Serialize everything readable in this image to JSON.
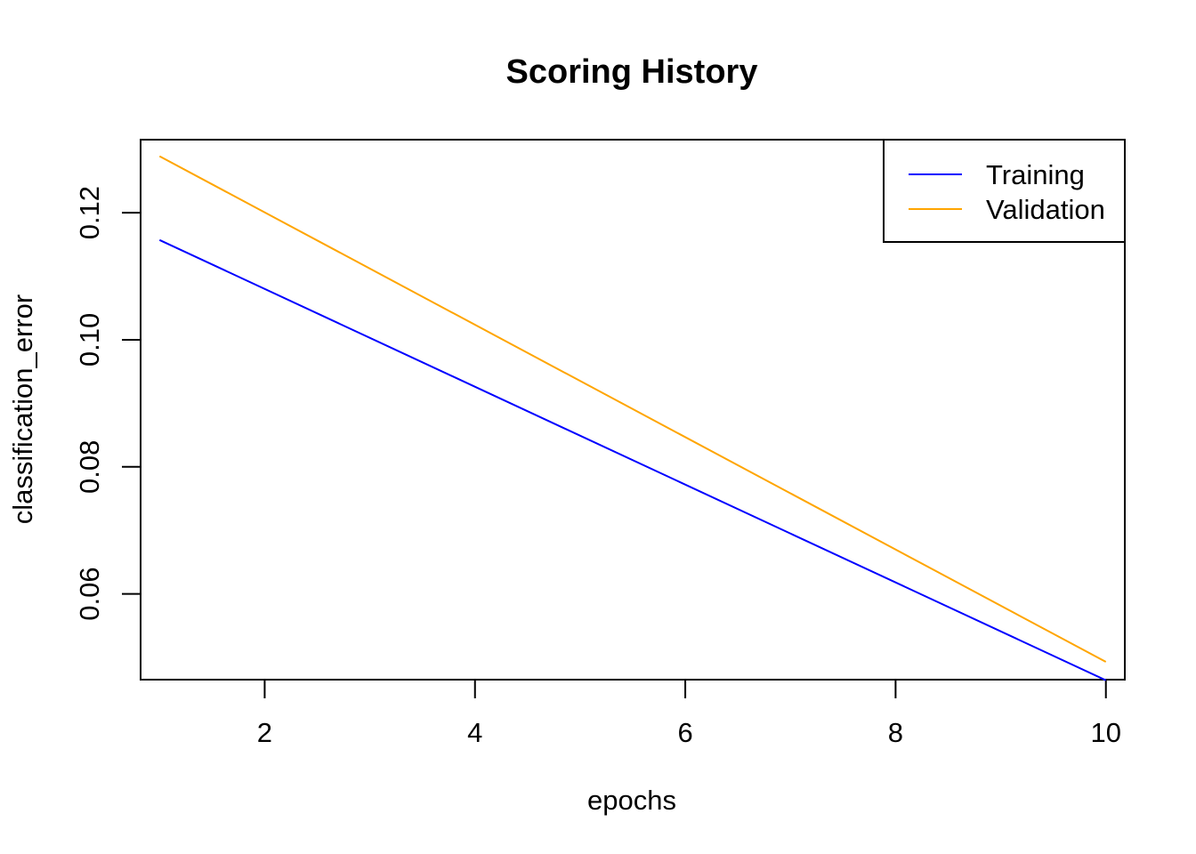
{
  "chart_data": {
    "type": "line",
    "title": "Scoring History",
    "xlabel": "epochs",
    "ylabel": "classification_error",
    "xlim": [
      0.82,
      10.18
    ],
    "ylim": [
      0.0465,
      0.1315
    ],
    "x_ticks": [
      2,
      4,
      6,
      8,
      10
    ],
    "y_ticks": [
      0.06,
      0.08,
      0.1,
      0.12
    ],
    "x_tick_labels": [
      "2",
      "4",
      "6",
      "8",
      "10"
    ],
    "y_tick_labels": [
      "0.06",
      "0.08",
      "0.10",
      "0.12"
    ],
    "grid": false,
    "legend_position": "top-right",
    "series": [
      {
        "name": "Training",
        "color": "#0000ff",
        "x": [
          1,
          10
        ],
        "y": [
          0.1157,
          0.0464
        ]
      },
      {
        "name": "Validation",
        "color": "#ffa500",
        "x": [
          1,
          10
        ],
        "y": [
          0.1289,
          0.0493
        ]
      }
    ]
  }
}
